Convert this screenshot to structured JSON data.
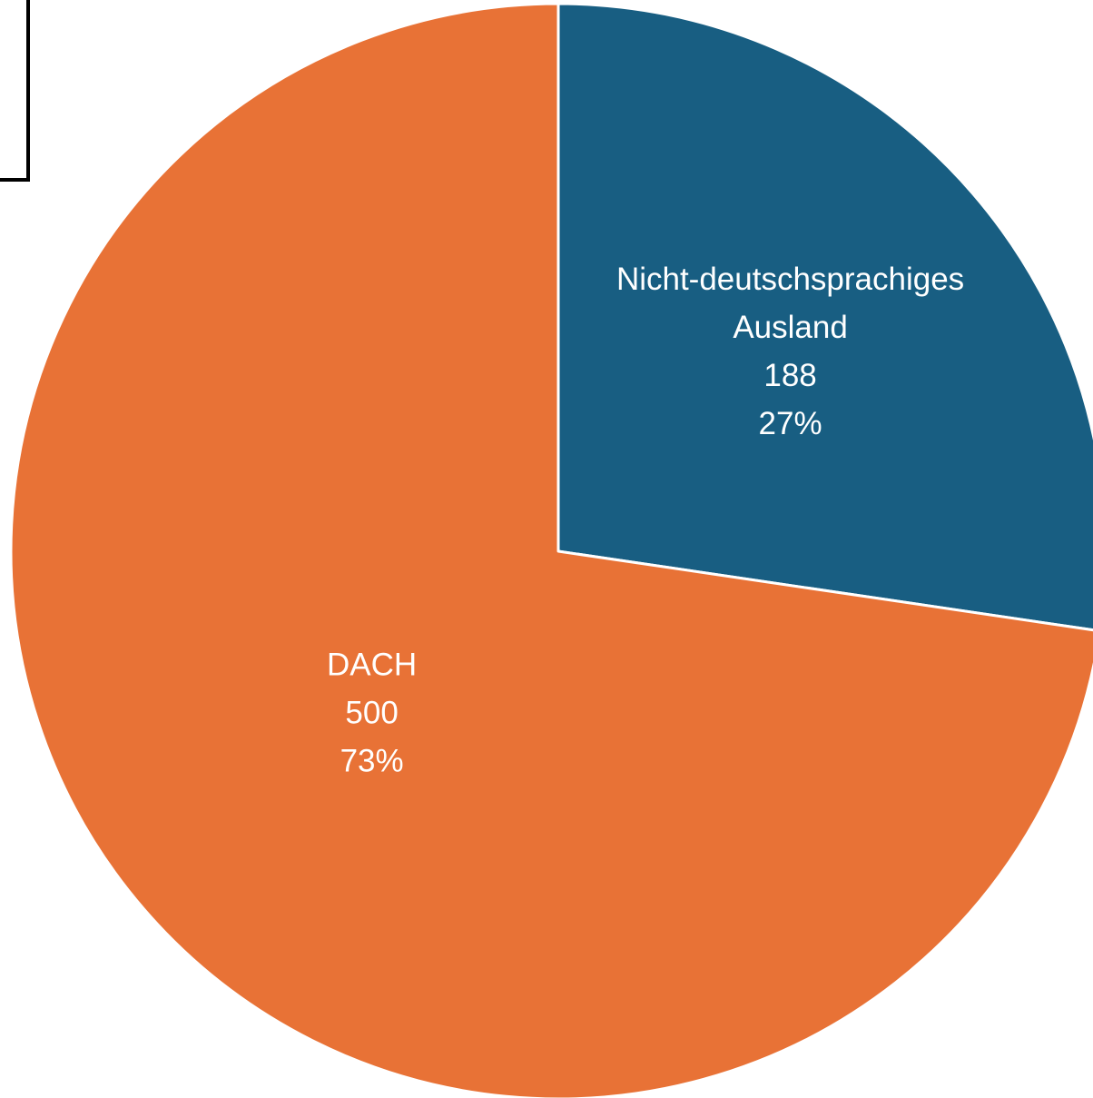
{
  "chart_data": {
    "type": "pie",
    "start_angle_deg": 0,
    "direction": "clockwise",
    "slices": [
      {
        "label": "Nicht-deutschsprachiges Ausland",
        "label_lines": [
          "Nicht-deutschsprachiges",
          "Ausland"
        ],
        "value": 188,
        "value_text": "188",
        "percent": 27,
        "percent_text": "27%",
        "color": "#185E82"
      },
      {
        "label": "DACH",
        "label_lines": [
          "DACH"
        ],
        "value": 500,
        "value_text": "500",
        "percent": 73,
        "percent_text": "73%",
        "color": "#E87236"
      }
    ],
    "slice_border_color": "#ffffff",
    "label_color": "#ffffff"
  }
}
